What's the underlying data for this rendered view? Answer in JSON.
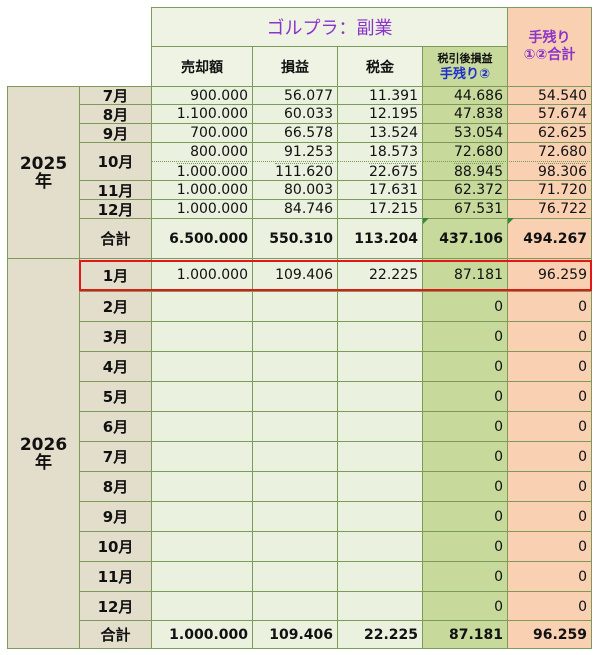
{
  "header": {
    "title": "ゴルプラ：副業",
    "col_sales": "売却額",
    "col_profit": "損益",
    "col_tax": "税金",
    "col_net_line1": "税引後損益",
    "col_net_line2": "手残り②",
    "col_total_line1": "手残り",
    "col_total_line2": "①②合計"
  },
  "year2025": {
    "label": "2025",
    "suffix": "年",
    "rows": [
      {
        "month": "7月",
        "sales": "900.000",
        "profit": "56.077",
        "tax": "11.391",
        "net": "44.686",
        "total": "54.540"
      },
      {
        "month": "8月",
        "sales": "1.100.000",
        "profit": "60.033",
        "tax": "12.195",
        "net": "47.838",
        "total": "57.674"
      },
      {
        "month": "9月",
        "sales": "700.000",
        "profit": "66.578",
        "tax": "13.524",
        "net": "53.054",
        "total": "62.625"
      },
      {
        "month": "10月",
        "sales": "800.000",
        "profit": "91.253",
        "tax": "18.573",
        "net": "72.680",
        "total": "72.680"
      },
      {
        "month": "",
        "sales": "1.000.000",
        "profit": "111.620",
        "tax": "22.675",
        "net": "88.945",
        "total": "98.306"
      },
      {
        "month": "11月",
        "sales": "1.000.000",
        "profit": "80.003",
        "tax": "17.631",
        "net": "62.372",
        "total": "71.720"
      },
      {
        "month": "12月",
        "sales": "1.000.000",
        "profit": "84.746",
        "tax": "17.215",
        "net": "67.531",
        "total": "76.722"
      }
    ],
    "sum": {
      "label": "合計",
      "sales": "6.500.000",
      "profit": "550.310",
      "tax": "113.204",
      "net": "437.106",
      "total": "494.267"
    }
  },
  "year2026": {
    "label": "2026",
    "suffix": "年",
    "rows": [
      {
        "month": "1月",
        "sales": "1.000.000",
        "profit": "109.406",
        "tax": "22.225",
        "net": "87.181",
        "total": "96.259"
      },
      {
        "month": "2月",
        "sales": "",
        "profit": "",
        "tax": "",
        "net": "0",
        "total": "0"
      },
      {
        "month": "3月",
        "sales": "",
        "profit": "",
        "tax": "",
        "net": "0",
        "total": "0"
      },
      {
        "month": "4月",
        "sales": "",
        "profit": "",
        "tax": "",
        "net": "0",
        "total": "0"
      },
      {
        "month": "5月",
        "sales": "",
        "profit": "",
        "tax": "",
        "net": "0",
        "total": "0"
      },
      {
        "month": "6月",
        "sales": "",
        "profit": "",
        "tax": "",
        "net": "0",
        "total": "0"
      },
      {
        "month": "7月",
        "sales": "",
        "profit": "",
        "tax": "",
        "net": "0",
        "total": "0"
      },
      {
        "month": "8月",
        "sales": "",
        "profit": "",
        "tax": "",
        "net": "0",
        "total": "0"
      },
      {
        "month": "9月",
        "sales": "",
        "profit": "",
        "tax": "",
        "net": "0",
        "total": "0"
      },
      {
        "month": "10月",
        "sales": "",
        "profit": "",
        "tax": "",
        "net": "0",
        "total": "0"
      },
      {
        "month": "11月",
        "sales": "",
        "profit": "",
        "tax": "",
        "net": "0",
        "total": "0"
      },
      {
        "month": "12月",
        "sales": "",
        "profit": "",
        "tax": "",
        "net": "0",
        "total": "0"
      }
    ],
    "sum": {
      "label": "合計",
      "sales": "1.000.000",
      "profit": "109.406",
      "tax": "22.225",
      "net": "87.181",
      "total": "96.259"
    }
  },
  "colors": {
    "highlight": "#e01818",
    "title": "#8a35c9",
    "accent_blue": "#1d2fc8"
  }
}
